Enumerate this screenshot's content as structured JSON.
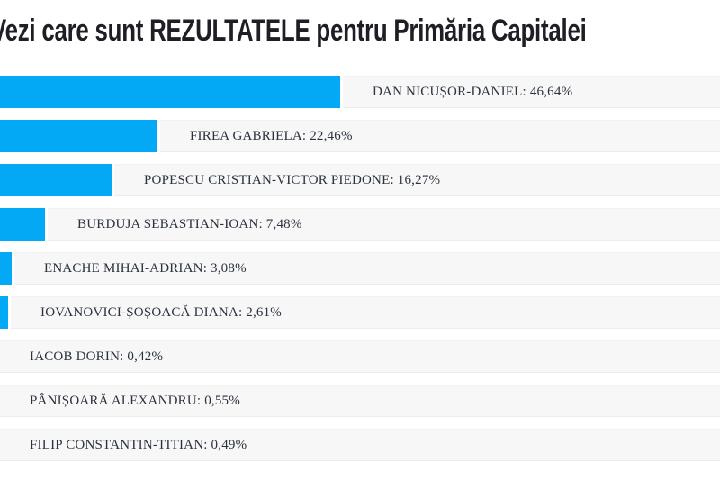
{
  "header": {
    "title": "Vezi care sunt REZULTATELE pentru Primăria Capitalei"
  },
  "colors": {
    "bar": "#03a9f4",
    "track": "#f7f7f8",
    "title_text": "#1d1f24",
    "label_text": "#2a323d"
  },
  "chart_data": {
    "type": "bar",
    "orientation": "horizontal",
    "title": "Vezi care sunt REZULTATELE pentru Primăria Capitalei",
    "unit": "%",
    "xlim": [
      0,
      100
    ],
    "grid": false,
    "legend": false,
    "categories": [
      "DAN NICUȘOR-DANIEL",
      "FIREA GABRIELA",
      "POPESCU CRISTIAN-VICTOR PIEDONE",
      "BURDUJA SEBASTIAN-IOAN",
      "ENACHE MIHAI-ADRIAN",
      "IOVANOVICI-ȘOȘOACĂ DIANA",
      "IACOB DORIN",
      "PÂNIȘOARĂ ALEXANDRU",
      "FILIP CONSTANTIN-TITIAN"
    ],
    "values": [
      46.64,
      22.46,
      16.27,
      7.48,
      3.08,
      2.61,
      0.42,
      0.55,
      0.49
    ],
    "value_labels": [
      "46,64%",
      "22,46%",
      "16,27%",
      "7,48%",
      "3,08%",
      "2,61%",
      "0,42%",
      "0,55%",
      "0,49%"
    ],
    "label_separator": ": "
  }
}
